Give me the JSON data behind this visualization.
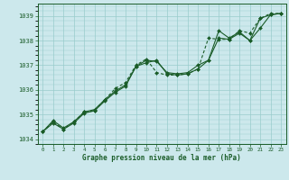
{
  "title": "Graphe pression niveau de la mer (hPa)",
  "ylim": [
    1033.8,
    1039.5
  ],
  "xlim": [
    -0.5,
    23.5
  ],
  "yticks": [
    1034,
    1035,
    1036,
    1037,
    1038,
    1039
  ],
  "xticks": [
    0,
    1,
    2,
    3,
    4,
    5,
    6,
    7,
    8,
    9,
    10,
    11,
    12,
    13,
    14,
    15,
    16,
    17,
    18,
    19,
    20,
    21,
    22,
    23
  ],
  "bg_color": "#cce8ec",
  "grid_color": "#99cccc",
  "line_color": "#1a5c28",
  "series1_y": [
    1034.3,
    1034.65,
    1034.4,
    1034.65,
    1035.05,
    1035.15,
    1035.55,
    1035.9,
    1036.15,
    1036.95,
    1037.1,
    1037.2,
    1036.65,
    1036.6,
    1036.65,
    1036.85,
    1037.2,
    1038.1,
    1038.05,
    1038.3,
    1038.0,
    1038.5,
    1039.05,
    1039.1
  ],
  "series2_y": [
    1034.3,
    1034.7,
    1034.4,
    1034.7,
    1035.1,
    1035.15,
    1035.6,
    1036.05,
    1036.3,
    1037.0,
    1037.25,
    1036.7,
    1036.6,
    1036.6,
    1036.65,
    1036.85,
    1038.1,
    1038.05,
    1038.05,
    1038.4,
    1038.3,
    1038.9,
    1039.1,
    1039.1
  ],
  "series3_y": [
    1034.3,
    1034.75,
    1034.45,
    1034.7,
    1035.1,
    1035.2,
    1035.6,
    1035.95,
    1036.2,
    1036.95,
    1037.2,
    1037.15,
    1036.7,
    1036.65,
    1036.7,
    1037.0,
    1037.2,
    1038.4,
    1038.1,
    1038.35,
    1038.0,
    1038.9,
    1039.05,
    1039.1
  ]
}
